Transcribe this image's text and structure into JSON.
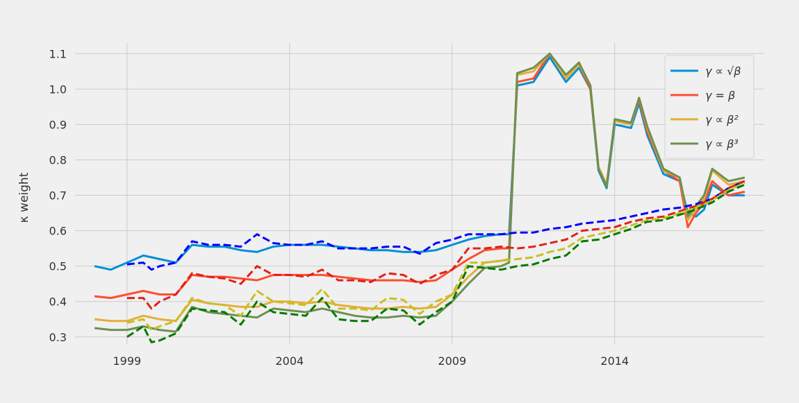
{
  "chart_data": {
    "type": "line",
    "title": "",
    "xlabel": "",
    "ylabel": "κ weight",
    "xlim": [
      1997.4,
      2018.6
    ],
    "ylim": [
      0.28,
      1.13
    ],
    "x_ticks": [
      1999,
      2004,
      2009,
      2014
    ],
    "y_ticks": [
      0.3,
      0.4,
      0.5,
      0.6,
      0.7,
      0.8,
      0.9,
      1.0,
      1.1
    ],
    "y_tick_labels": [
      "0.3",
      "0.4",
      "0.5",
      "0.6",
      "0.7",
      "0.8",
      "0.9",
      "1.0",
      "1.1"
    ],
    "grid": true,
    "legend_position": "top-right",
    "legend": [
      {
        "label": "γ ∝ √β",
        "color": "#008fd5"
      },
      {
        "label": "γ = β",
        "color": "#fc4f30"
      },
      {
        "label": "γ ∝ β²",
        "color": "#e5ae38"
      },
      {
        "label": "γ ∝ β³",
        "color": "#6d904f"
      }
    ],
    "series": [
      {
        "name": "γ ∝ √β",
        "style": "solid",
        "color": "#008fd5",
        "x": [
          1998.0,
          1998.5,
          1999.0,
          1999.5,
          2000.0,
          2000.5,
          2001.0,
          2001.5,
          2002.0,
          2002.5,
          2003.0,
          2003.5,
          2004.0,
          2004.5,
          2005.0,
          2005.5,
          2006.0,
          2006.5,
          2007.0,
          2007.5,
          2008.0,
          2008.5,
          2009.0,
          2009.5,
          2010.0,
          2010.5,
          2010.75,
          2011.0,
          2011.5,
          2012.0,
          2012.5,
          2012.9,
          2013.25,
          2013.5,
          2013.75,
          2014.0,
          2014.5,
          2014.75,
          2015.0,
          2015.5,
          2016.0,
          2016.25,
          2016.5,
          2016.75,
          2017.0,
          2017.5,
          2018.0
        ],
        "y": [
          0.5,
          0.49,
          0.51,
          0.53,
          0.52,
          0.51,
          0.56,
          0.555,
          0.555,
          0.545,
          0.54,
          0.555,
          0.56,
          0.56,
          0.56,
          0.555,
          0.55,
          0.545,
          0.545,
          0.54,
          0.54,
          0.545,
          0.56,
          0.575,
          0.585,
          0.59,
          0.59,
          1.01,
          1.02,
          1.09,
          1.02,
          1.06,
          1.0,
          0.77,
          0.72,
          0.9,
          0.89,
          0.96,
          0.87,
          0.76,
          0.74,
          0.65,
          0.64,
          0.66,
          0.73,
          0.7,
          0.7
        ]
      },
      {
        "name": "γ = β",
        "style": "solid",
        "color": "#fc4f30",
        "x": [
          1998.0,
          1998.5,
          1999.0,
          1999.5,
          2000.0,
          2000.5,
          2001.0,
          2001.5,
          2002.0,
          2002.5,
          2003.0,
          2003.5,
          2004.0,
          2004.5,
          2005.0,
          2005.5,
          2006.0,
          2006.5,
          2007.0,
          2007.5,
          2008.0,
          2008.5,
          2009.0,
          2009.5,
          2010.0,
          2010.5,
          2010.75,
          2011.0,
          2011.5,
          2012.0,
          2012.5,
          2012.9,
          2013.25,
          2013.5,
          2013.75,
          2014.0,
          2014.5,
          2014.75,
          2015.0,
          2015.5,
          2016.0,
          2016.25,
          2016.5,
          2016.75,
          2017.0,
          2017.5,
          2018.0
        ],
        "y": [
          0.415,
          0.41,
          0.42,
          0.43,
          0.42,
          0.42,
          0.475,
          0.47,
          0.47,
          0.465,
          0.46,
          0.475,
          0.475,
          0.475,
          0.475,
          0.47,
          0.465,
          0.46,
          0.46,
          0.46,
          0.455,
          0.46,
          0.49,
          0.52,
          0.545,
          0.55,
          0.55,
          1.02,
          1.03,
          1.1,
          1.03,
          1.07,
          1.0,
          0.78,
          0.73,
          0.91,
          0.9,
          0.97,
          0.88,
          0.77,
          0.74,
          0.61,
          0.65,
          0.68,
          0.74,
          0.7,
          0.71
        ]
      },
      {
        "name": "γ ∝ β²",
        "style": "solid",
        "color": "#e5ae38",
        "x": [
          1998.0,
          1998.5,
          1999.0,
          1999.5,
          2000.0,
          2000.5,
          2001.0,
          2001.5,
          2002.0,
          2002.5,
          2003.0,
          2003.5,
          2004.0,
          2004.5,
          2005.0,
          2005.5,
          2006.0,
          2006.5,
          2007.0,
          2007.5,
          2008.0,
          2008.5,
          2009.0,
          2009.5,
          2010.0,
          2010.5,
          2010.75,
          2011.0,
          2011.5,
          2012.0,
          2012.5,
          2012.9,
          2013.25,
          2013.5,
          2013.75,
          2014.0,
          2014.5,
          2014.75,
          2015.0,
          2015.5,
          2016.0,
          2016.25,
          2016.5,
          2016.75,
          2017.0,
          2017.5,
          2018.0
        ],
        "y": [
          0.35,
          0.345,
          0.345,
          0.36,
          0.35,
          0.345,
          0.405,
          0.395,
          0.39,
          0.385,
          0.385,
          0.4,
          0.4,
          0.395,
          0.4,
          0.39,
          0.385,
          0.38,
          0.38,
          0.385,
          0.38,
          0.385,
          0.42,
          0.47,
          0.51,
          0.515,
          0.52,
          1.04,
          1.05,
          1.1,
          1.03,
          1.07,
          1.01,
          0.78,
          0.73,
          0.91,
          0.9,
          0.975,
          0.89,
          0.77,
          0.75,
          0.63,
          0.66,
          0.69,
          0.77,
          0.73,
          0.74
        ]
      },
      {
        "name": "γ ∝ β³",
        "style": "solid",
        "color": "#6d904f",
        "x": [
          1998.0,
          1998.5,
          1999.0,
          1999.5,
          2000.0,
          2000.5,
          2001.0,
          2001.5,
          2002.0,
          2002.5,
          2003.0,
          2003.5,
          2004.0,
          2004.5,
          2005.0,
          2005.5,
          2006.0,
          2006.5,
          2007.0,
          2007.5,
          2008.0,
          2008.5,
          2009.0,
          2009.5,
          2010.0,
          2010.5,
          2010.75,
          2011.0,
          2011.5,
          2012.0,
          2012.5,
          2012.9,
          2013.25,
          2013.5,
          2013.75,
          2014.0,
          2014.5,
          2014.75,
          2015.0,
          2015.5,
          2016.0,
          2016.25,
          2016.5,
          2016.75,
          2017.0,
          2017.5,
          2018.0
        ],
        "y": [
          0.325,
          0.32,
          0.32,
          0.33,
          0.32,
          0.315,
          0.385,
          0.37,
          0.365,
          0.36,
          0.355,
          0.38,
          0.375,
          0.37,
          0.38,
          0.37,
          0.36,
          0.355,
          0.355,
          0.36,
          0.355,
          0.36,
          0.4,
          0.45,
          0.495,
          0.5,
          0.51,
          1.045,
          1.06,
          1.1,
          1.04,
          1.075,
          1.01,
          0.775,
          0.725,
          0.915,
          0.905,
          0.975,
          0.895,
          0.775,
          0.75,
          0.64,
          0.67,
          0.7,
          0.775,
          0.74,
          0.75
        ]
      },
      {
        "name": "",
        "style": "dashed",
        "color": "#0000ff",
        "x": [
          1999.0,
          1999.5,
          1999.75,
          2000.0,
          2000.5,
          2001.0,
          2001.5,
          2002.0,
          2002.5,
          2003.0,
          2003.5,
          2004.0,
          2004.5,
          2005.0,
          2005.5,
          2006.0,
          2006.5,
          2007.0,
          2007.5,
          2008.0,
          2008.5,
          2009.0,
          2009.5,
          2010.0,
          2010.5,
          2011.0,
          2011.5,
          2012.0,
          2012.5,
          2013.0,
          2013.5,
          2014.0,
          2014.5,
          2015.0,
          2015.5,
          2016.0,
          2016.5,
          2017.0,
          2017.5,
          2018.0
        ],
        "y": [
          0.505,
          0.51,
          0.49,
          0.5,
          0.51,
          0.57,
          0.56,
          0.56,
          0.555,
          0.59,
          0.565,
          0.56,
          0.56,
          0.57,
          0.55,
          0.55,
          0.55,
          0.555,
          0.555,
          0.535,
          0.565,
          0.575,
          0.59,
          0.59,
          0.59,
          0.595,
          0.595,
          0.605,
          0.61,
          0.62,
          0.625,
          0.63,
          0.64,
          0.65,
          0.66,
          0.665,
          0.675,
          0.69,
          0.72,
          0.74
        ]
      },
      {
        "name": "",
        "style": "dashed",
        "color": "#e0201b",
        "x": [
          1999.0,
          1999.5,
          1999.75,
          2000.0,
          2000.5,
          2001.0,
          2001.5,
          2002.0,
          2002.5,
          2003.0,
          2003.5,
          2004.0,
          2004.5,
          2005.0,
          2005.5,
          2006.0,
          2006.5,
          2007.0,
          2007.5,
          2008.0,
          2008.5,
          2009.0,
          2009.5,
          2010.0,
          2010.5,
          2011.0,
          2011.5,
          2012.0,
          2012.5,
          2013.0,
          2013.5,
          2014.0,
          2014.5,
          2015.0,
          2015.5,
          2016.0,
          2016.5,
          2017.0,
          2017.5,
          2018.0
        ],
        "y": [
          0.41,
          0.41,
          0.38,
          0.4,
          0.42,
          0.48,
          0.47,
          0.465,
          0.45,
          0.5,
          0.475,
          0.475,
          0.47,
          0.49,
          0.46,
          0.46,
          0.455,
          0.48,
          0.475,
          0.45,
          0.475,
          0.49,
          0.55,
          0.55,
          0.555,
          0.55,
          0.555,
          0.565,
          0.575,
          0.6,
          0.605,
          0.61,
          0.625,
          0.635,
          0.64,
          0.655,
          0.67,
          0.69,
          0.72,
          0.74
        ]
      },
      {
        "name": "",
        "style": "dashed",
        "color": "#c8c020",
        "x": [
          1999.0,
          1999.5,
          1999.75,
          2000.0,
          2000.5,
          2001.0,
          2001.5,
          2002.0,
          2002.5,
          2003.0,
          2003.5,
          2004.0,
          2004.5,
          2005.0,
          2005.5,
          2006.0,
          2006.5,
          2007.0,
          2007.5,
          2008.0,
          2008.5,
          2009.0,
          2009.5,
          2010.0,
          2010.5,
          2011.0,
          2011.5,
          2012.0,
          2012.5,
          2013.0,
          2013.5,
          2014.0,
          2014.5,
          2015.0,
          2015.5,
          2016.0,
          2016.5,
          2017.0,
          2017.5,
          2018.0
        ],
        "y": [
          0.34,
          0.35,
          0.32,
          0.33,
          0.345,
          0.41,
          0.395,
          0.39,
          0.36,
          0.43,
          0.4,
          0.395,
          0.39,
          0.435,
          0.38,
          0.38,
          0.375,
          0.41,
          0.405,
          0.365,
          0.4,
          0.42,
          0.51,
          0.51,
          0.515,
          0.52,
          0.525,
          0.54,
          0.55,
          0.58,
          0.59,
          0.6,
          0.615,
          0.63,
          0.635,
          0.65,
          0.665,
          0.685,
          0.715,
          0.735
        ]
      },
      {
        "name": "",
        "style": "dashed",
        "color": "#007a00",
        "x": [
          1999.0,
          1999.5,
          1999.75,
          2000.0,
          2000.5,
          2001.0,
          2001.5,
          2002.0,
          2002.5,
          2003.0,
          2003.5,
          2004.0,
          2004.5,
          2005.0,
          2005.5,
          2006.0,
          2006.5,
          2007.0,
          2007.5,
          2008.0,
          2008.5,
          2009.0,
          2009.5,
          2010.0,
          2010.5,
          2011.0,
          2011.5,
          2012.0,
          2012.5,
          2013.0,
          2013.5,
          2014.0,
          2014.5,
          2015.0,
          2015.5,
          2016.0,
          2016.5,
          2017.0,
          2017.5,
          2018.0
        ],
        "y": [
          0.3,
          0.33,
          0.285,
          0.29,
          0.31,
          0.38,
          0.375,
          0.37,
          0.335,
          0.4,
          0.37,
          0.365,
          0.36,
          0.41,
          0.35,
          0.345,
          0.345,
          0.38,
          0.375,
          0.335,
          0.37,
          0.4,
          0.5,
          0.495,
          0.49,
          0.5,
          0.505,
          0.52,
          0.53,
          0.57,
          0.575,
          0.59,
          0.605,
          0.625,
          0.63,
          0.645,
          0.66,
          0.68,
          0.71,
          0.73
        ]
      }
    ]
  }
}
